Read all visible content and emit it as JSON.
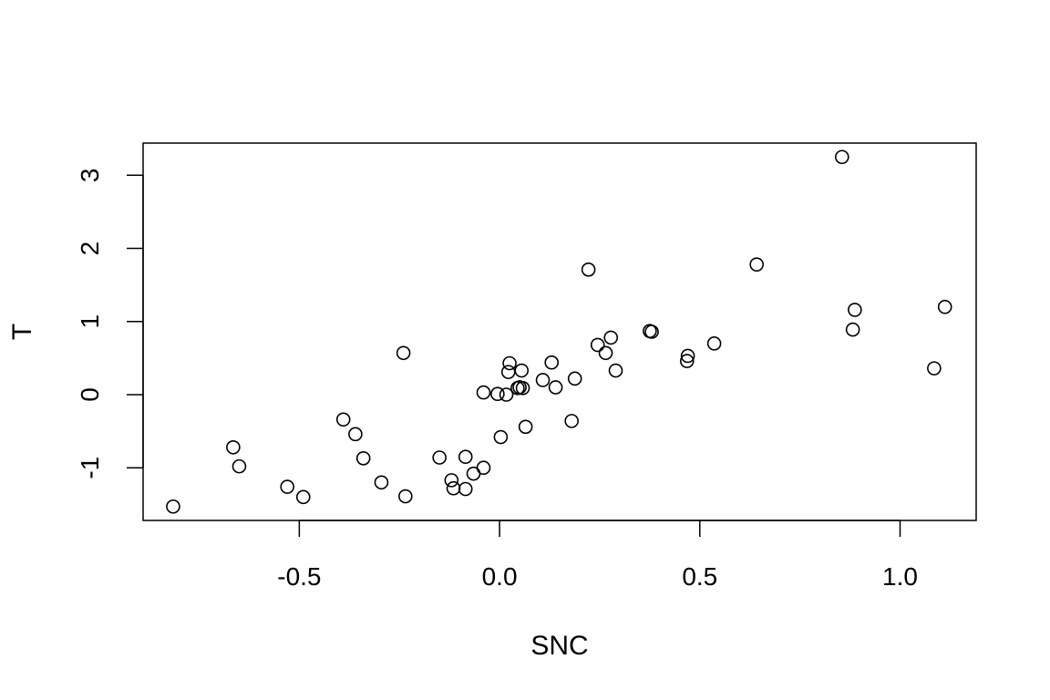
{
  "chart_data": {
    "type": "scatter",
    "title": "",
    "xlabel": "SNC",
    "ylabel": "T",
    "xlim": [
      -0.89,
      1.19
    ],
    "ylim": [
      -1.72,
      3.44
    ],
    "x_ticks": [
      -0.5,
      0.0,
      0.5,
      1.0
    ],
    "x_tick_labels": [
      "-0.5",
      "0.0",
      "0.5",
      "1.0"
    ],
    "y_ticks": [
      -1,
      0,
      1,
      2,
      3
    ],
    "y_tick_labels": [
      "-1",
      "0",
      "1",
      "2",
      "3"
    ],
    "grid": false,
    "marker": "open-circle",
    "points": [
      {
        "x": -0.815,
        "y": -1.53
      },
      {
        "x": -0.665,
        "y": -0.72
      },
      {
        "x": -0.65,
        "y": -0.98
      },
      {
        "x": -0.53,
        "y": -1.26
      },
      {
        "x": -0.49,
        "y": -1.4
      },
      {
        "x": -0.39,
        "y": -0.34
      },
      {
        "x": -0.36,
        "y": -0.54
      },
      {
        "x": -0.34,
        "y": -0.87
      },
      {
        "x": -0.295,
        "y": -1.2
      },
      {
        "x": -0.24,
        "y": 0.57
      },
      {
        "x": -0.235,
        "y": -1.39
      },
      {
        "x": -0.15,
        "y": -0.86
      },
      {
        "x": -0.12,
        "y": -1.17
      },
      {
        "x": -0.115,
        "y": -1.28
      },
      {
        "x": -0.085,
        "y": -0.85
      },
      {
        "x": -0.085,
        "y": -1.29
      },
      {
        "x": -0.065,
        "y": -1.08
      },
      {
        "x": -0.04,
        "y": 0.03
      },
      {
        "x": -0.04,
        "y": -1.0
      },
      {
        "x": -0.005,
        "y": 0.01
      },
      {
        "x": 0.003,
        "y": -0.58
      },
      {
        "x": 0.017,
        "y": 0.0
      },
      {
        "x": 0.022,
        "y": 0.31
      },
      {
        "x": 0.025,
        "y": 0.43
      },
      {
        "x": 0.045,
        "y": 0.09
      },
      {
        "x": 0.05,
        "y": 0.1
      },
      {
        "x": 0.055,
        "y": 0.33
      },
      {
        "x": 0.058,
        "y": 0.09
      },
      {
        "x": 0.065,
        "y": -0.44
      },
      {
        "x": 0.108,
        "y": 0.2
      },
      {
        "x": 0.13,
        "y": 0.44
      },
      {
        "x": 0.14,
        "y": 0.1
      },
      {
        "x": 0.18,
        "y": -0.36
      },
      {
        "x": 0.188,
        "y": 0.22
      },
      {
        "x": 0.222,
        "y": 1.71
      },
      {
        "x": 0.245,
        "y": 0.68
      },
      {
        "x": 0.265,
        "y": 0.57
      },
      {
        "x": 0.278,
        "y": 0.78
      },
      {
        "x": 0.29,
        "y": 0.33
      },
      {
        "x": 0.375,
        "y": 0.87
      },
      {
        "x": 0.38,
        "y": 0.86
      },
      {
        "x": 0.468,
        "y": 0.46
      },
      {
        "x": 0.47,
        "y": 0.53
      },
      {
        "x": 0.536,
        "y": 0.7
      },
      {
        "x": 0.642,
        "y": 1.78
      },
      {
        "x": 0.855,
        "y": 3.25
      },
      {
        "x": 0.882,
        "y": 0.89
      },
      {
        "x": 0.887,
        "y": 1.16
      },
      {
        "x": 1.085,
        "y": 0.36
      },
      {
        "x": 1.112,
        "y": 1.2
      }
    ]
  }
}
